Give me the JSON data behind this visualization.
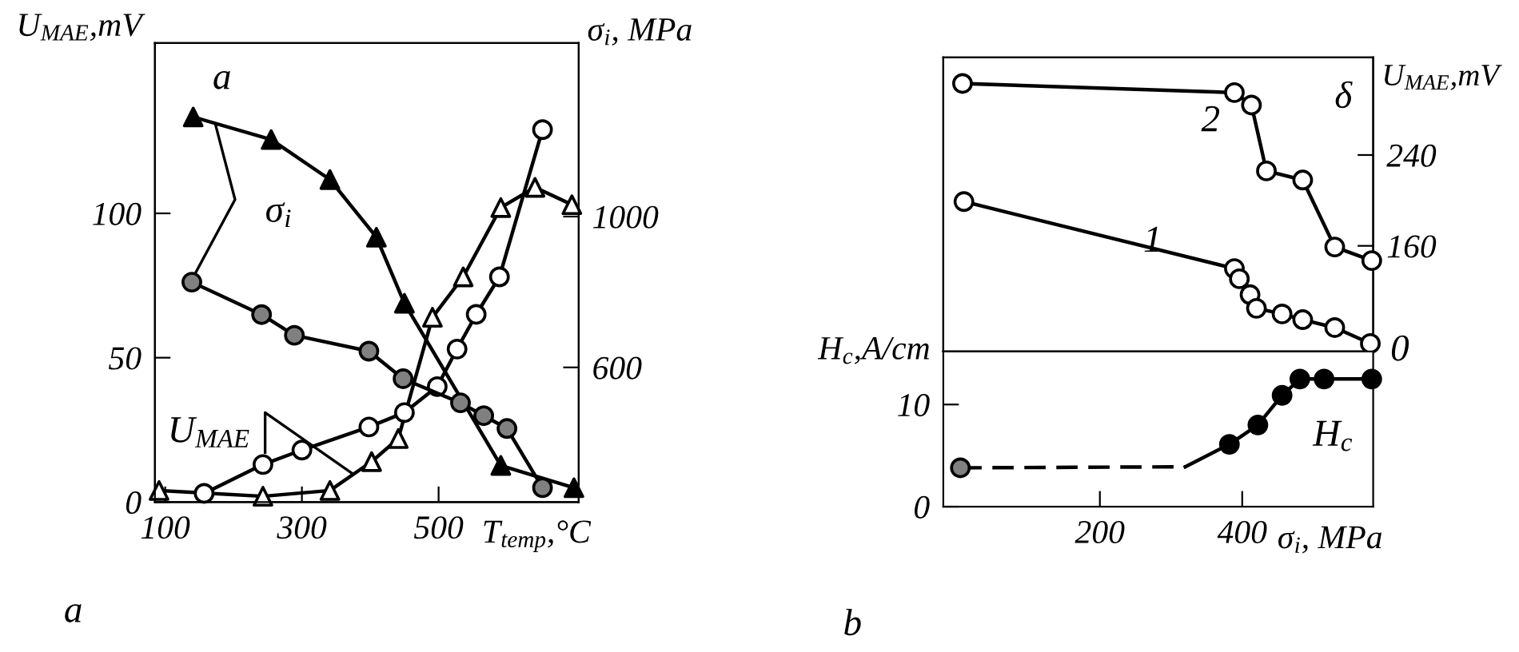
{
  "chart_data": [
    {
      "type": "line",
      "xlabel": "T$_{temp}$,°C",
      "ylabel": "U$_{MAE}$,mV",
      "y2label": "σ$_{i}$, MPa",
      "xlim": [
        85,
        705
      ],
      "xticks": [
        100,
        300,
        500
      ],
      "ylim": [
        0,
        159
      ],
      "yticks": [
        0,
        50,
        100
      ],
      "y2lim": [
        243,
        1460
      ],
      "y2ticks": [
        600,
        1000
      ],
      "annotations": [
        "a",
        {
          "text": "σ$_{i}$",
          "x": 139,
          "y": 77
        },
        {
          "text": "U$_{MAE}$",
          "x": 373,
          "y": 10
        },
        "a"
      ],
      "series": [
        {
          "axis": "y2",
          "color": "#000000",
          "marker": "triangle",
          "colors": [
            "#000000",
            "#000000",
            "#000000",
            "#000000",
            "#000000",
            "#000000",
            "#000000"
          ],
          "x": [
            141,
            255,
            341,
            409,
            450,
            591,
            698
          ],
          "values": [
            1264,
            1204,
            1098,
            945,
            770,
            340,
            281
          ]
        },
        {
          "axis": "y2",
          "color": "#000000",
          "marker": "circle",
          "colors": [
            "#808080",
            "#808080",
            "#808080",
            "#808080",
            "#808080",
            "#808080",
            "#808080",
            "#808080",
            "#808080"
          ],
          "x": [
            139,
            241,
            289,
            398,
            448,
            532,
            566,
            600,
            652
          ],
          "values": [
            826,
            740,
            685,
            643,
            570,
            506,
            472,
            438,
            281
          ]
        },
        {
          "axis": "y",
          "color": "#000000",
          "marker": "triangle",
          "colors": [
            "#ffffff",
            "#ffffff",
            "#ffffff",
            "#ffffff",
            "#ffffff",
            "#ffffff",
            "#ffffff",
            "#ffffff",
            "#ffffff",
            "#ffffff"
          ],
          "x": [
            91,
            243,
            341,
            402,
            441,
            491,
            536,
            591,
            641,
            695
          ],
          "values": [
            4,
            2,
            4,
            14,
            22,
            64,
            78,
            102,
            109,
            103
          ]
        },
        {
          "axis": "y",
          "color": "#000000",
          "marker": "circle",
          "colors": [
            "#ffffff",
            "#ffffff",
            "#ffffff",
            "#ffffff",
            "#ffffff",
            "#ffffff",
            "#ffffff",
            "#ffffff",
            "#ffffff",
            "#ffffff"
          ],
          "x": [
            157,
            243,
            300,
            398,
            450,
            498,
            527,
            555,
            589,
            652
          ],
          "values": [
            3,
            13,
            18,
            26,
            31,
            40,
            53,
            65,
            78,
            129
          ]
        }
      ]
    },
    {
      "type": "line",
      "y2label": "U$_{MAE}$,mV",
      "tick_labels": "y",
      "xlim": [
        -20,
        584
      ],
      "xticks": [
        200,
        400
      ],
      "y2lim": [
        67,
        326
      ],
      "y2ticks": [
        160,
        240
      ],
      "annotations": [
        "δ",
        "2",
        "1",
        "0"
      ],
      "series": [
        {
          "axis": "y2",
          "color": "#000000",
          "marker": "circle",
          "colors": [
            "#ffffff",
            "#ffffff",
            "#ffffff",
            "#ffffff",
            "#ffffff",
            "#ffffff",
            "#ffffff"
          ],
          "x": [
            7,
            389,
            413,
            434,
            485,
            530,
            582
          ],
          "values": [
            303,
            295,
            284,
            226,
            218,
            159,
            147
          ]
        },
        {
          "axis": "y2",
          "color": "#000000",
          "marker": "circle",
          "colors": [
            "#ffffff",
            "#ffffff",
            "#ffffff",
            "#ffffff",
            "#ffffff",
            "#ffffff",
            "#ffffff",
            "#ffffff",
            "#ffffff"
          ],
          "x": [
            9,
            389,
            396,
            411,
            420,
            456,
            485,
            530,
            580
          ],
          "values": [
            199,
            140,
            131,
            117,
            105,
            100,
            95,
            88,
            74
          ]
        }
      ]
    },
    {
      "type": "line",
      "xlabel": "σ$_{i}$, MPa",
      "ylabel": "H$_{c}$,A/cm",
      "xlim": [
        -20,
        584
      ],
      "xticks": [
        200,
        400
      ],
      "ylim": [
        0,
        15.2
      ],
      "yticks": [
        0,
        10
      ],
      "annotations": [
        "H$_{c}$",
        "b"
      ],
      "series": [
        {
          "color": "#000000",
          "marker": "circle",
          "line_style": "dashed",
          "colors": [
            "#808080",
            null
          ],
          "x": [
            4,
            320
          ],
          "values": [
            3.8,
            3.9
          ]
        },
        {
          "color": "#000000",
          "marker": "circle",
          "colors": [
            null,
            "#000000",
            "#000000",
            "#000000",
            "#000000",
            "#000000",
            "#000000"
          ],
          "x": [
            320,
            382,
            422,
            456,
            481,
            515,
            582
          ],
          "values": [
            3.9,
            6.1,
            8.0,
            10.9,
            12.5,
            12.5,
            12.5
          ]
        }
      ]
    }
  ]
}
